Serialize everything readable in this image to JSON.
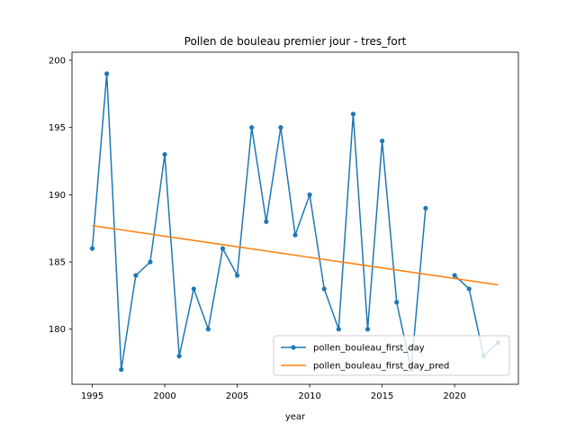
{
  "chart_data": {
    "type": "line",
    "title": "Pollen de bouleau premier jour - tres_fort",
    "xlabel": "year",
    "ylabel": "",
    "xlim": [
      1993.6,
      2024.4
    ],
    "ylim": [
      175.9,
      200.6
    ],
    "x_ticks": [
      1995,
      2000,
      2005,
      2010,
      2015,
      2020
    ],
    "y_ticks": [
      180,
      185,
      190,
      195,
      200
    ],
    "legend_position": "lower right",
    "grid": false,
    "series": [
      {
        "name": "pollen_bouleau_first_day",
        "color": "#1f77b4",
        "marker": "dot",
        "x": [
          1995,
          1996,
          1997,
          1998,
          1999,
          2000,
          2001,
          2002,
          2003,
          2004,
          2005,
          2006,
          2007,
          2008,
          2009,
          2010,
          2011,
          2012,
          2013,
          2014,
          2015,
          2016,
          2017,
          2018,
          2019,
          2020,
          2021,
          2022,
          2023
        ],
        "y": [
          186,
          199,
          177,
          184,
          185,
          193,
          178,
          183,
          180,
          186,
          184,
          195,
          188,
          195,
          187,
          190,
          183,
          180,
          196,
          180,
          194,
          182,
          177,
          189,
          null,
          184,
          183,
          178,
          179
        ]
      },
      {
        "name": "pollen_bouleau_first_day_pred",
        "color": "#ff7f0e",
        "marker": "none",
        "x": [
          1995,
          2023
        ],
        "y": [
          187.7,
          183.3
        ]
      }
    ]
  }
}
